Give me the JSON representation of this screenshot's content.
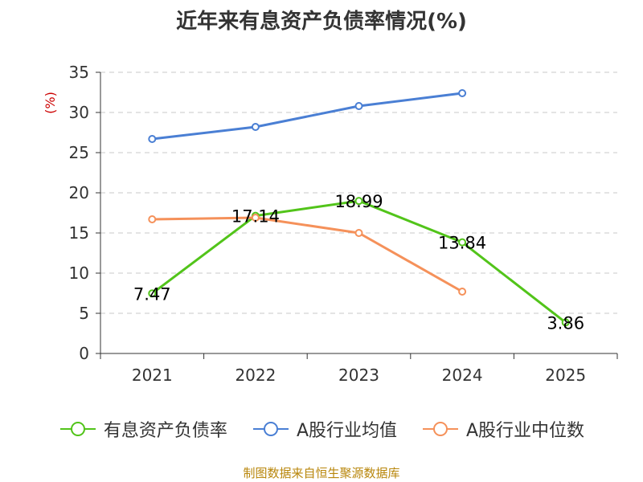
{
  "chart_data": {
    "type": "line",
    "title": "近年来有息资产负债率情况(%)",
    "unit_label": "(%)",
    "categories": [
      "2021",
      "2022",
      "2023",
      "2024",
      "2025"
    ],
    "ylim": [
      0,
      35
    ],
    "yticks": [
      "0",
      "5",
      "10",
      "15",
      "20",
      "25",
      "30",
      "35"
    ],
    "grid": true,
    "legend_position": "bottom",
    "series": [
      {
        "name": "有息资产负债率",
        "color": "#52c41a",
        "values": [
          7.47,
          17.14,
          18.99,
          13.84,
          3.86
        ],
        "labels": [
          "7.47",
          "17.14",
          "18.99",
          "13.84",
          "3.86"
        ]
      },
      {
        "name": "A股行业均值",
        "color": "#4a7fd4",
        "values": [
          26.7,
          28.2,
          30.8,
          32.4,
          null
        ]
      },
      {
        "name": "A股行业中位数",
        "color": "#f5915a",
        "values": [
          16.7,
          16.9,
          15.0,
          7.7,
          null
        ]
      }
    ],
    "source": "制图数据来自恒生聚源数据库"
  }
}
